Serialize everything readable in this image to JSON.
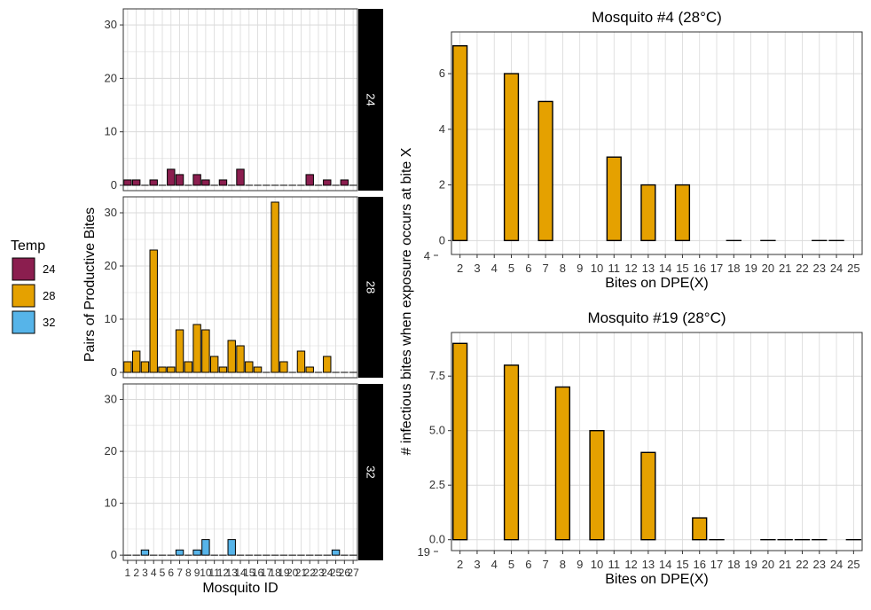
{
  "colors": {
    "temp_24": "#8B1E4F",
    "temp_28": "#E5A100",
    "temp_32": "#56B4E9",
    "strip_bg": "#000000",
    "strip_text": "#ffffff",
    "grid": "#d9d9d9",
    "panel_border": "#333333",
    "bar_outline": "#000000"
  },
  "legend": {
    "title": "Temp",
    "items": [
      {
        "label": "24",
        "color_key": "temp_24"
      },
      {
        "label": "28",
        "color_key": "temp_28"
      },
      {
        "label": "32",
        "color_key": "temp_32"
      }
    ]
  },
  "chart_data": [
    {
      "type": "bar",
      "layout": "facet-rows",
      "xlabel": "Mosquito ID",
      "ylabel": "Pairs of Productive Bites",
      "ylim": [
        -1,
        33
      ],
      "yticks": [
        0,
        10,
        20,
        30
      ],
      "grid": true,
      "categories": [
        "1",
        "2",
        "3",
        "4",
        "5",
        "6",
        "7",
        "8",
        "9",
        "10",
        "11",
        "12",
        "13",
        "14",
        "15",
        "16",
        "17",
        "18",
        "19",
        "20",
        "21",
        "22",
        "23",
        "24",
        "25",
        "26",
        "27"
      ],
      "series": [
        {
          "name": "24",
          "values": [
            1,
            1,
            0,
            1,
            0,
            3,
            2,
            0,
            2,
            1,
            0,
            1,
            0,
            3,
            0,
            0,
            0,
            0,
            0,
            0,
            0,
            2,
            0,
            1,
            0,
            1,
            0
          ]
        },
        {
          "name": "28",
          "values": [
            2,
            4,
            2,
            23,
            1,
            1,
            8,
            2,
            9,
            8,
            3,
            1,
            6,
            5,
            2,
            1,
            0,
            32,
            2,
            0,
            4,
            1,
            0,
            3,
            0,
            0,
            0
          ]
        },
        {
          "name": "32",
          "values": [
            0,
            0,
            1,
            0,
            0,
            0,
            1,
            0,
            1,
            3,
            0,
            0,
            3,
            0,
            0,
            0,
            0,
            0,
            0,
            0,
            0,
            0,
            0,
            0,
            1,
            0,
            0
          ]
        }
      ]
    },
    {
      "type": "bar",
      "title": "Mosquito #4 (28°C)",
      "xlabel": "Bites on DPE(X)",
      "ylabel": "# infectious bites when exposure occurs at bite X",
      "corner_label": "4",
      "ylim": [
        -0.5,
        7.5
      ],
      "yticks": [
        "0",
        "2",
        "4",
        "6"
      ],
      "grid": true,
      "categories": [
        "2",
        "3",
        "4",
        "5",
        "6",
        "7",
        "8",
        "9",
        "10",
        "11",
        "12",
        "13",
        "14",
        "15",
        "16",
        "17",
        "18",
        "19",
        "20",
        "21",
        "22",
        "23",
        "24",
        "25"
      ],
      "values": [
        7,
        0,
        0,
        6,
        0,
        5,
        0,
        0,
        0,
        3,
        0,
        2,
        0,
        2,
        0,
        0,
        0,
        0,
        0,
        0,
        0,
        0,
        0,
        0
      ]
    },
    {
      "type": "bar",
      "title": "Mosquito #19 (28°C)",
      "xlabel": "Bites on DPE(X)",
      "ylabel": "# infectious bites when exposure occurs at bite X",
      "corner_label": "19",
      "ylim": [
        -0.5,
        9.5
      ],
      "yticks": [
        "0.0",
        "2.5",
        "5.0",
        "7.5"
      ],
      "grid": true,
      "categories": [
        "2",
        "3",
        "4",
        "5",
        "6",
        "7",
        "8",
        "9",
        "10",
        "11",
        "12",
        "13",
        "14",
        "15",
        "16",
        "17",
        "18",
        "19",
        "20",
        "21",
        "22",
        "23",
        "24",
        "25"
      ],
      "values": [
        9,
        0,
        0,
        8,
        0,
        0,
        7,
        0,
        5,
        0,
        0,
        4,
        0,
        0,
        1,
        0,
        0,
        0,
        0,
        0,
        0,
        0,
        0,
        0
      ]
    }
  ]
}
